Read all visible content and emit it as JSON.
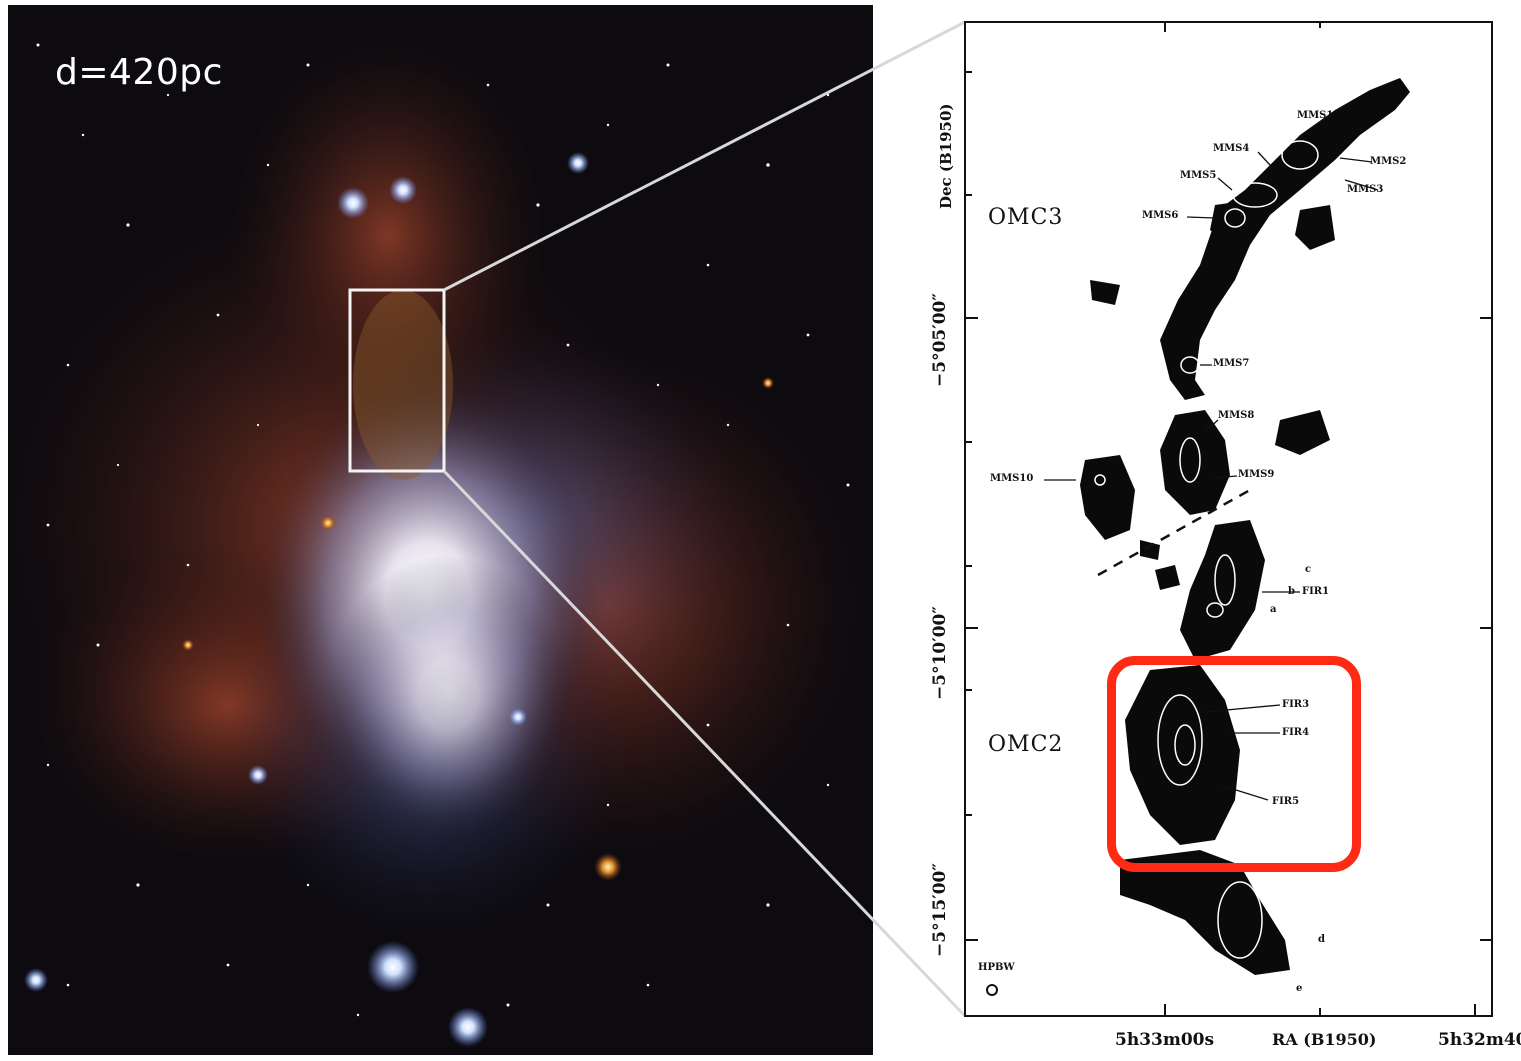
{
  "photo": {
    "distance_label": "d=420pc"
  },
  "map": {
    "dec_axis_label": "Dec (B1950)",
    "dec_ticks": [
      "−5°05′00″",
      "−5°10′00″",
      "−5°15′00″"
    ],
    "ra_ticks": [
      "5h33m00s",
      "RA (B1950)",
      "5h32m40s"
    ],
    "regions": [
      "OMC3",
      "OMC2"
    ],
    "beam_label": "HPBW",
    "sources": [
      "MMS1",
      "MMS2",
      "MMS3",
      "MMS4",
      "MMS5",
      "MMS6",
      "MMS7",
      "MMS8",
      "MMS9",
      "MMS10",
      "FIR1",
      "FIR3",
      "FIR4",
      "FIR5",
      "a",
      "b",
      "c",
      "d",
      "e"
    ],
    "highlight_color": "#ff2a14"
  }
}
